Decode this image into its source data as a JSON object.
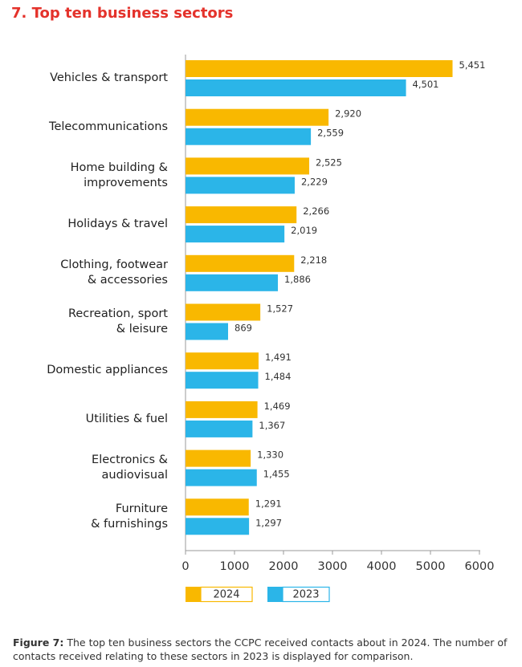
{
  "chart_data": {
    "type": "bar",
    "orientation": "horizontal",
    "title": "7. Top ten business sectors",
    "categories": [
      "Vehicles & transport",
      "Telecommunications",
      "Home building &\nimprovements",
      "Holidays & travel",
      "Clothing, footwear\n& accessories",
      "Recreation, sport\n& leisure",
      "Domestic appliances",
      "Utilities & fuel",
      "Electronics &\naudiovisual",
      "Furniture\n& furnishings"
    ],
    "series": [
      {
        "name": "2024",
        "color": "#f9b800",
        "values": [
          5451,
          2920,
          2525,
          2266,
          2218,
          1527,
          1491,
          1469,
          1330,
          1291
        ],
        "value_labels": [
          "5,451",
          "2,920",
          "2,525",
          "2,266",
          "2,218",
          "1,527",
          "1,491",
          "1,469",
          "1,330",
          "1,291"
        ]
      },
      {
        "name": "2023",
        "color": "#2bb5e8",
        "values": [
          4501,
          2559,
          2229,
          2019,
          1886,
          869,
          1484,
          1367,
          1455,
          1297
        ],
        "value_labels": [
          "4,501",
          "2,559",
          "2,229",
          "2,019",
          "1,886",
          "869",
          "1,484",
          "1,367",
          "1,455",
          "1,297"
        ]
      }
    ],
    "xlim": [
      0,
      6000
    ],
    "xticks": [
      0,
      1000,
      2000,
      3000,
      4000,
      5000,
      6000
    ],
    "caption_label": "Figure 7:",
    "caption": "The top ten business sectors the CCPC received contacts about in 2024. The number of contacts received relating to these sectors in 2023 is displayed for comparison."
  }
}
